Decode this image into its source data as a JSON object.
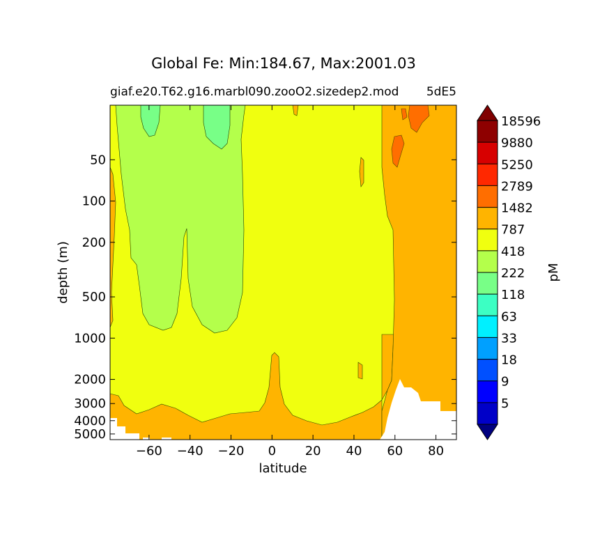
{
  "chart_data": {
    "type": "contourf",
    "title": "Global Fe: Min:184.67, Max:2001.03",
    "subtitle_left": "giaf.e20.T62.g16.marbl090.zooO2.sizedep2.mod",
    "subtitle_right": "5dE5",
    "xlabel": "latitude",
    "ylabel": "depth (m)",
    "xlim": [
      -79,
      90
    ],
    "ylim": [
      5500,
      20
    ],
    "yscale": "log",
    "x_ticks": [
      {
        "value": -60,
        "label": "−60"
      },
      {
        "value": -40,
        "label": "−40"
      },
      {
        "value": -20,
        "label": "−20"
      },
      {
        "value": 0,
        "label": "0"
      },
      {
        "value": 20,
        "label": "20"
      },
      {
        "value": 40,
        "label": "40"
      },
      {
        "value": 60,
        "label": "60"
      },
      {
        "value": 80,
        "label": "80"
      }
    ],
    "y_ticks": [
      {
        "value": 50,
        "label": "50"
      },
      {
        "value": 100,
        "label": "100"
      },
      {
        "value": 200,
        "label": "200"
      },
      {
        "value": 500,
        "label": "500"
      },
      {
        "value": 1000,
        "label": "1000"
      },
      {
        "value": 2000,
        "label": "2000"
      },
      {
        "value": 3000,
        "label": "3000"
      },
      {
        "value": 4000,
        "label": "4000"
      },
      {
        "value": 5000,
        "label": "5000"
      }
    ],
    "colorbar": {
      "label": "pM",
      "extend": "both",
      "under_color": "#000080",
      "over_color": "#800000",
      "levels": [
        "5",
        "9",
        "18",
        "33",
        "63",
        "118",
        "222",
        "418",
        "787",
        "1482",
        "2789",
        "5250",
        "9880",
        "18596"
      ],
      "colors": [
        "#0000c8",
        "#0000ff",
        "#0050ff",
        "#00a0ff",
        "#00f0ff",
        "#3cffc3",
        "#78ff87",
        "#b4ff4b",
        "#f0ff0f",
        "#ffb400",
        "#ff6e00",
        "#ff2800",
        "#d70000",
        "#8e0000"
      ]
    },
    "fields": [
      {
        "name": "background",
        "class": "418-787 pM"
      },
      {
        "name": "deep-band",
        "class": "787-1482 pM"
      },
      {
        "name": "north-region",
        "class": "787-1482 pM"
      },
      {
        "name": "southern-ocean-water",
        "class": "222-418 pM"
      },
      {
        "name": "upper-ocean-core",
        "class": "118-222 pM"
      },
      {
        "name": "arctic-surface",
        "class": "1482-2789 pM"
      },
      {
        "name": "no-data",
        "class": "missing"
      }
    ]
  }
}
